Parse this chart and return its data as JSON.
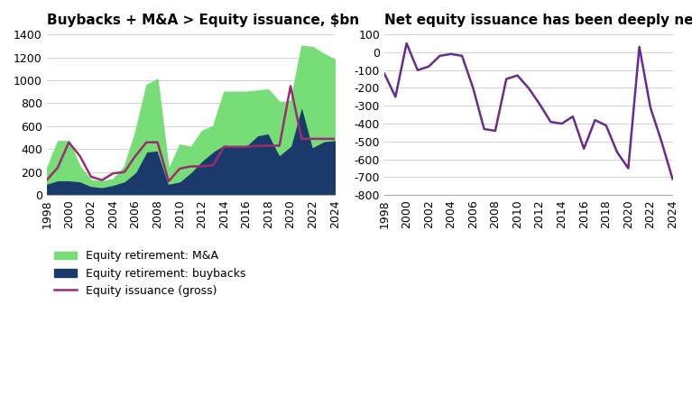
{
  "title_left": "Buybacks + M&A > Equity issuance, $bn",
  "title_right": "Net equity issuance has been deeply negative, $bn",
  "years_left": [
    1998,
    1999,
    2000,
    2001,
    2002,
    2003,
    2004,
    2005,
    2006,
    2007,
    2008,
    2009,
    2010,
    2011,
    2012,
    2013,
    2014,
    2015,
    2016,
    2017,
    2018,
    2019,
    2020,
    2021,
    2022,
    2023,
    2024
  ],
  "buybacks": [
    100,
    130,
    130,
    120,
    80,
    70,
    90,
    120,
    200,
    380,
    390,
    100,
    120,
    200,
    300,
    380,
    440,
    430,
    430,
    520,
    540,
    350,
    430,
    780,
    420,
    470,
    480
  ],
  "ma": [
    130,
    340,
    340,
    130,
    50,
    50,
    50,
    130,
    350,
    580,
    620,
    120,
    320,
    220,
    260,
    220,
    460,
    470,
    470,
    390,
    380,
    460,
    390,
    520,
    870,
    760,
    700
  ],
  "issuance": [
    130,
    240,
    460,
    340,
    160,
    130,
    190,
    200,
    340,
    460,
    460,
    120,
    230,
    250,
    250,
    260,
    420,
    420,
    420,
    430,
    430,
    430,
    950,
    490,
    490,
    490,
    490
  ],
  "years_right": [
    1998,
    1999,
    2000,
    2001,
    2002,
    2003,
    2004,
    2005,
    2006,
    2007,
    2008,
    2009,
    2010,
    2011,
    2012,
    2013,
    2014,
    2015,
    2016,
    2017,
    2018,
    2019,
    2020,
    2021,
    2022,
    2023,
    2024
  ],
  "net_issuance": [
    -120,
    -250,
    50,
    -100,
    -80,
    -20,
    -10,
    -20,
    -200,
    -430,
    -440,
    -150,
    -130,
    -200,
    -290,
    -390,
    -400,
    -360,
    -540,
    -380,
    -410,
    -560,
    -650,
    30,
    -310,
    -500,
    -710
  ],
  "color_ma": "#77dd77",
  "color_buybacks": "#1a3a6b",
  "color_issuance_line": "#9b2d6f",
  "color_net": "#6a2c8c",
  "ylim_left": [
    0,
    1400
  ],
  "ylim_right": [
    -800,
    100
  ],
  "yticks_left": [
    0,
    200,
    400,
    600,
    800,
    1000,
    1200,
    1400
  ],
  "yticks_right": [
    -800,
    -700,
    -600,
    -500,
    -400,
    -300,
    -200,
    -100,
    0,
    100
  ],
  "xticks": [
    1998,
    2000,
    2002,
    2004,
    2006,
    2008,
    2010,
    2012,
    2014,
    2016,
    2018,
    2020,
    2022,
    2024
  ],
  "legend_ma": "Equity retirement: M&A",
  "legend_buybacks": "Equity retirement: buybacks",
  "legend_issuance": "Equity issuance (gross)",
  "bg_color": "#f5f5f5",
  "title_fontsize": 11,
  "tick_fontsize": 9,
  "legend_fontsize": 9
}
